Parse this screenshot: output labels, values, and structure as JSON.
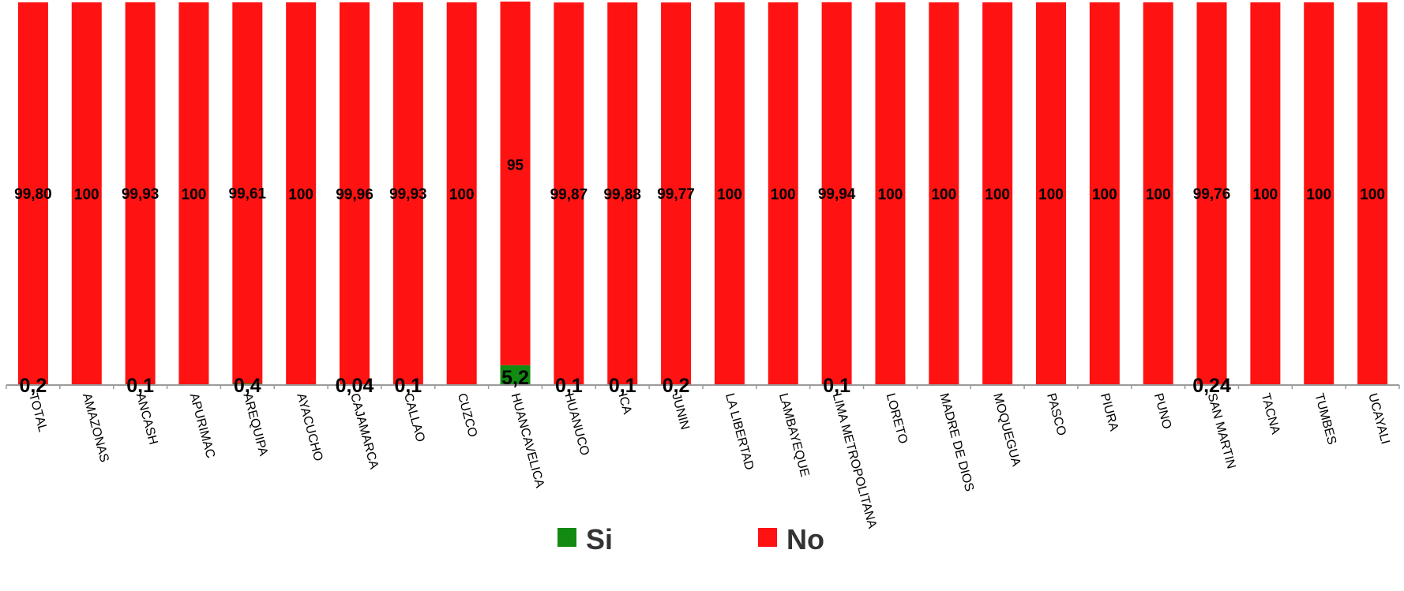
{
  "chart_data": {
    "type": "bar",
    "stacked": true,
    "categories": [
      "TOTAL",
      "AMAZONAS",
      "ANCASH",
      "APURIMAC",
      "AREQUIPA",
      "AYACUCHO",
      "CAJAMARCA",
      "CALLAO",
      "CUZCO",
      "HUANCAVELICA",
      "HUANUCO",
      "ICA",
      "JUNIN",
      "LA LIBERTAD",
      "LAMBAYEQUE",
      "LIMA METROPOLITANA",
      "LORETO",
      "MADRE DE DIOS",
      "MOQUEGUA",
      "PASCO",
      "PIURA",
      "PUNO",
      "SAN MARTIN",
      "TACNA",
      "TUMBES",
      "UCAYALI"
    ],
    "series": [
      {
        "name": "Si",
        "color": "#138a12",
        "values": [
          0.2,
          0,
          0.1,
          0,
          0.4,
          0,
          0.04,
          0.1,
          0,
          5.2,
          0.1,
          0.1,
          0.2,
          0,
          0,
          0.1,
          0,
          0,
          0,
          0,
          0,
          0,
          0.24,
          0,
          0,
          0
        ],
        "labels": [
          "0,2",
          "",
          "0,1",
          "",
          "0,4",
          "",
          "0,04",
          "0,1",
          "",
          "5,2",
          "0,1",
          "0,1",
          "0,2",
          "",
          "",
          "0,1",
          "",
          "",
          "",
          "",
          "",
          "",
          "0,24",
          "",
          "",
          ""
        ]
      },
      {
        "name": "No",
        "color": "#ff1212",
        "values": [
          99.8,
          100,
          99.93,
          100,
          99.61,
          100,
          99.96,
          99.93,
          100,
          95,
          99.87,
          99.88,
          99.77,
          100,
          100,
          99.94,
          100,
          100,
          100,
          100,
          100,
          100,
          99.76,
          100,
          100,
          100
        ],
        "labels": [
          "99,80",
          "100",
          "99,93",
          "100",
          "99,61",
          "100",
          "99,96",
          "99,93",
          "100",
          "95",
          "99,87",
          "99,88",
          "99,77",
          "100",
          "100",
          "99,94",
          "100",
          "100",
          "100",
          "100",
          "100",
          "100",
          "99,76",
          "100",
          "100",
          "100"
        ]
      }
    ],
    "ylim": [
      0,
      100
    ],
    "legend": "bottom",
    "grid": false
  }
}
